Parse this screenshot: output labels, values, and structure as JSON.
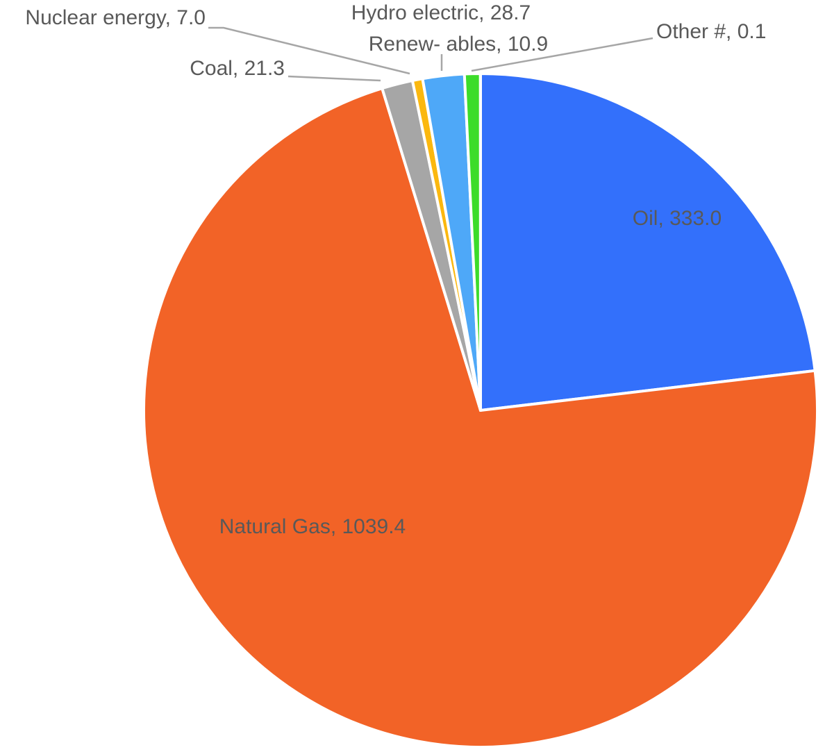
{
  "chart_data": {
    "type": "pie",
    "title": "",
    "start_angle_deg": 0,
    "direction": "clockwise",
    "legend": "none",
    "slices": [
      {
        "name": "Oil",
        "value": 333.0,
        "label": "Oil, 333.0",
        "color": "#3370FB"
      },
      {
        "name": "Natural Gas",
        "value": 1039.4,
        "label": "Natural Gas, 1039.4",
        "color": "#F26327"
      },
      {
        "name": "Coal",
        "value": 21.3,
        "label": "Coal, 21.3",
        "color": "#A6A6A6"
      },
      {
        "name": "Nuclear energy",
        "value": 7.0,
        "label": "Nuclear energy, 7.0",
        "color": "#FBB80F"
      },
      {
        "name": "Hydro electric",
        "value": 28.7,
        "label": "Hydro electric, 28.7",
        "color": "#4EA8F8"
      },
      {
        "name": "Renew- ables",
        "value": 10.9,
        "label": "Renew- ables, 10.9",
        "color": "#3CDC2A"
      },
      {
        "name": "Other #",
        "value": 0.1,
        "label": "Other #, 0.1",
        "color": "#5B9BD5"
      }
    ]
  }
}
